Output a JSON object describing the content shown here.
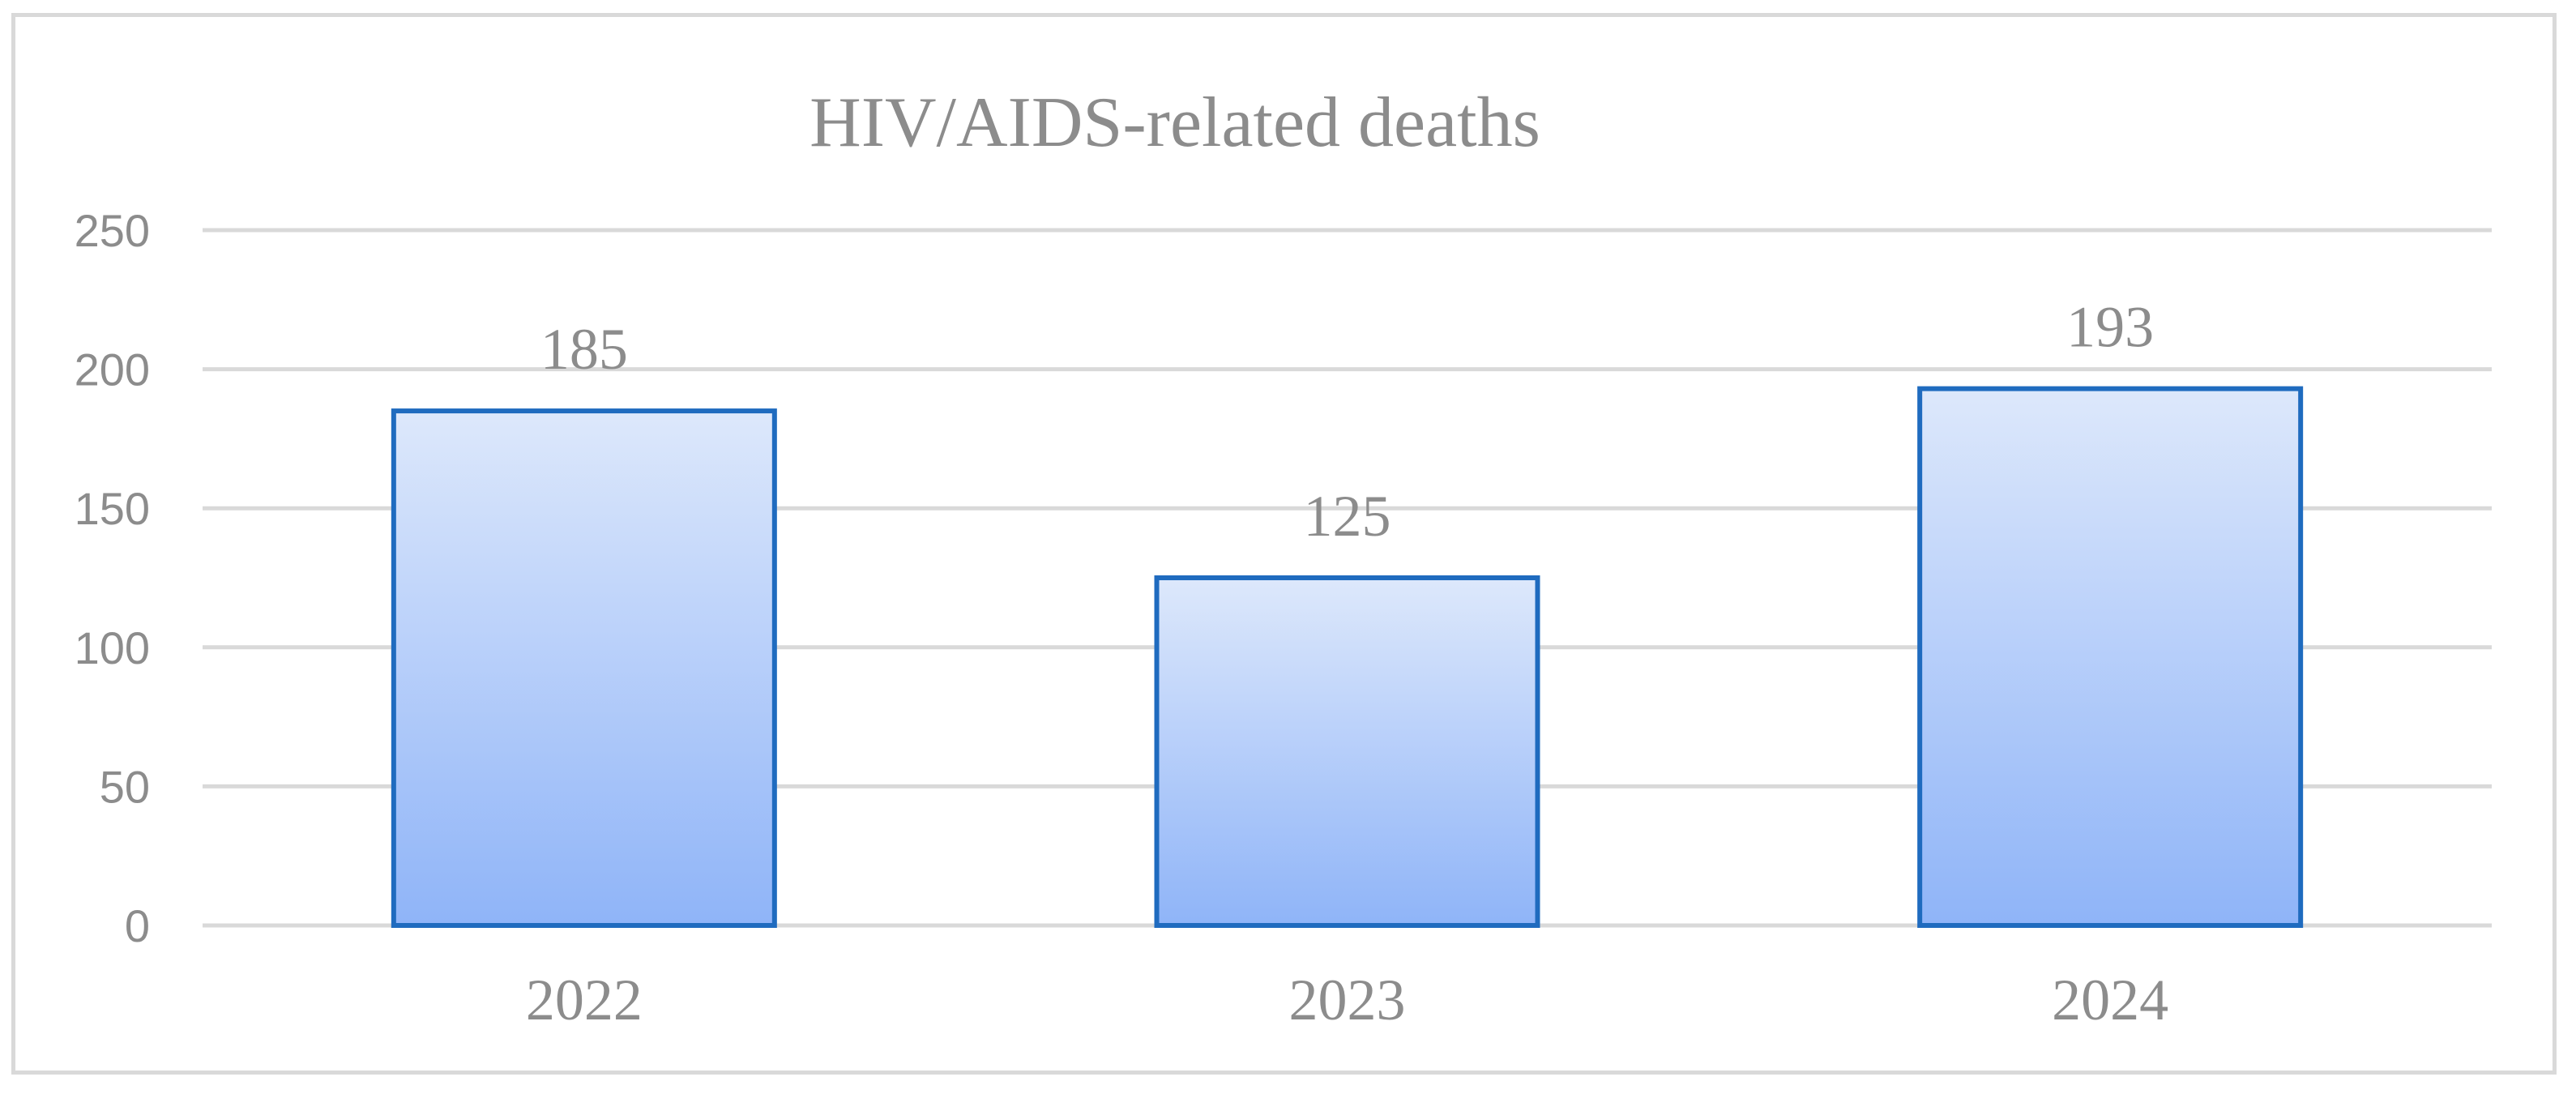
{
  "chart_data": {
    "type": "bar",
    "title": "HIV/AIDS-related deaths",
    "categories": [
      "2022",
      "2023",
      "2024"
    ],
    "values": [
      185,
      125,
      193
    ],
    "data_labels": [
      "185",
      "125",
      "193"
    ],
    "yticks": [
      "0",
      "50",
      "100",
      "150",
      "200",
      "250"
    ],
    "ylim": [
      0,
      250
    ],
    "xlabel": "",
    "ylabel": "",
    "grid": true,
    "legend": "none",
    "colors": {
      "bar_top": "#dde8fb",
      "bar_bottom": "#8fb4f8",
      "bar_border": "#1f6bbf",
      "gridline": "#d9d9d9",
      "text": "#8c8c8c",
      "frame": "#d9d9d9"
    }
  }
}
